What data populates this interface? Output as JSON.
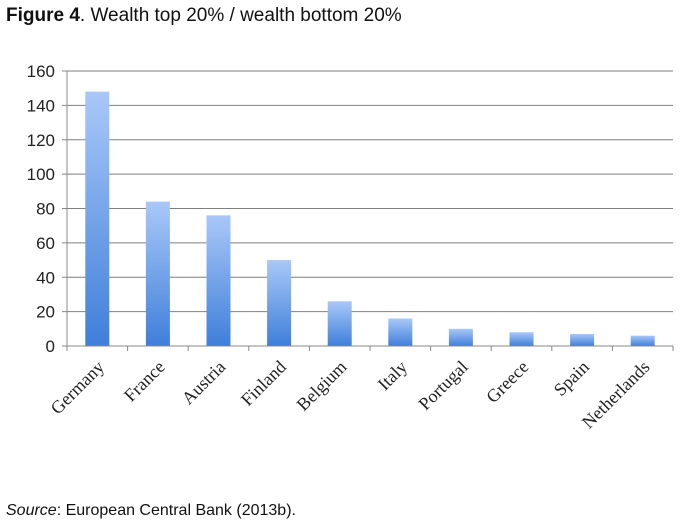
{
  "title": {
    "bold": "Figure 4",
    "rest": ". Wealth top 20% / wealth bottom 20%"
  },
  "source": {
    "label": "Source",
    "rest": ": European Central Bank (2013b)."
  },
  "colors": {
    "bar_top": "#A9C8F8",
    "bar_bottom": "#3F7FDA",
    "grid": "#7f7f7f",
    "axis": "#888888"
  },
  "chart_data": {
    "type": "bar",
    "categories": [
      "Germany",
      "France",
      "Austria",
      "Finland",
      "Belgium",
      "Italy",
      "Portugal",
      "Greece",
      "Spain",
      "Netherlands"
    ],
    "values": [
      148,
      84,
      76,
      50,
      26,
      16,
      10,
      8,
      7,
      6
    ],
    "ylim": [
      0,
      160
    ],
    "yticks": [
      0,
      20,
      40,
      60,
      80,
      100,
      120,
      140,
      160
    ],
    "grid": true
  }
}
